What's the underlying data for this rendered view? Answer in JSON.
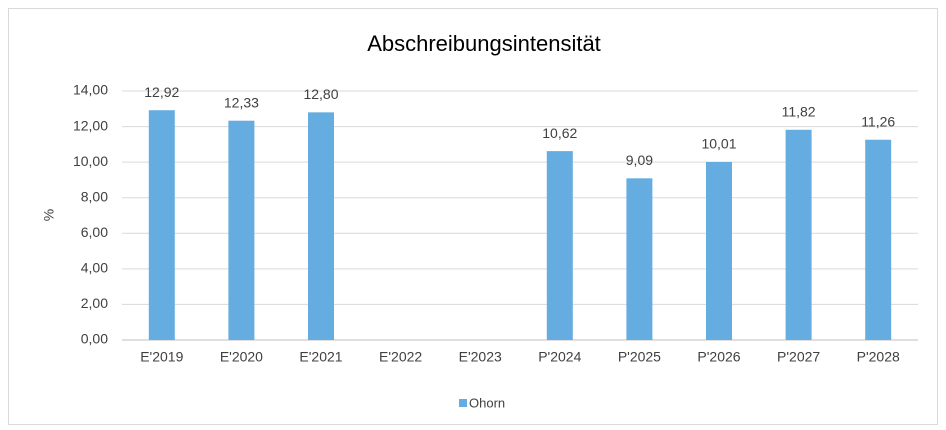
{
  "chart_data": {
    "type": "bar",
    "title": "Abschreibungsintensität",
    "y_label": "%",
    "categories": [
      "E'2019",
      "E'2020",
      "E'2021",
      "E'2022",
      "E'2023",
      "P'2024",
      "P'2025",
      "P'2026",
      "P'2027",
      "P'2028"
    ],
    "series": [
      {
        "name": "Ohorn",
        "color": "#65ade0",
        "values": [
          12.92,
          12.33,
          12.8,
          null,
          null,
          10.62,
          9.09,
          10.01,
          11.82,
          11.26
        ],
        "value_labels": [
          "12,92",
          "12,33",
          "12,80",
          null,
          null,
          "10,62",
          "9,09",
          "10,01",
          "11,82",
          "11,26"
        ]
      }
    ],
    "ylim": [
      0,
      14
    ],
    "yticks": [
      {
        "value": 0,
        "label": "0,00"
      },
      {
        "value": 2,
        "label": "2,00"
      },
      {
        "value": 4,
        "label": "4,00"
      },
      {
        "value": 6,
        "label": "6,00"
      },
      {
        "value": 8,
        "label": "8,00"
      },
      {
        "value": 10,
        "label": "10,00"
      },
      {
        "value": 12,
        "label": "12,00"
      },
      {
        "value": 14,
        "label": "14,00"
      }
    ],
    "grid": true,
    "legend": "bottom"
  }
}
